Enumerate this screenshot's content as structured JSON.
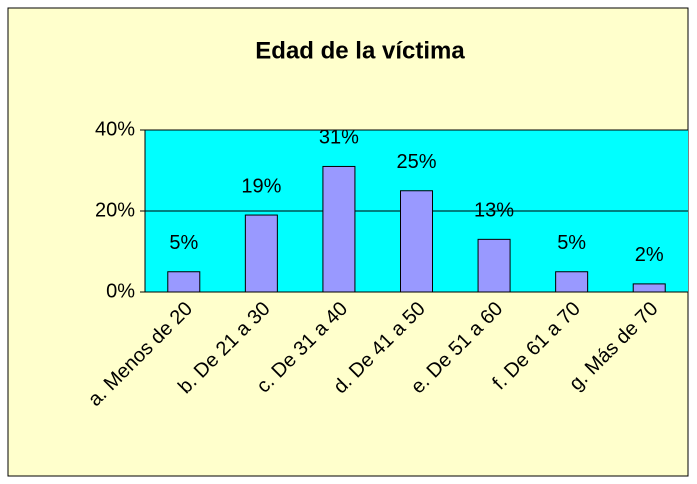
{
  "chart_data": {
    "type": "bar",
    "title": "Edad de la víctima",
    "categories": [
      "a. Menos de 20",
      "b. De 21 a 30",
      "c. De 31 a 40",
      "d. De 41 a 50",
      "e. De 51 a 60",
      "f. De 61 a 70",
      "g. Más de 70"
    ],
    "values": [
      5,
      19,
      31,
      25,
      13,
      5,
      2
    ],
    "value_labels": [
      "5%",
      "19%",
      "31%",
      "25%",
      "13%",
      "5%",
      "2%"
    ],
    "color": "#9999ff",
    "ylim": [
      0,
      40
    ],
    "yticks": [
      {
        "value": 0,
        "label": "0%"
      },
      {
        "value": 20,
        "label": "20%"
      },
      {
        "value": 40,
        "label": "40%"
      }
    ],
    "grid": true
  }
}
